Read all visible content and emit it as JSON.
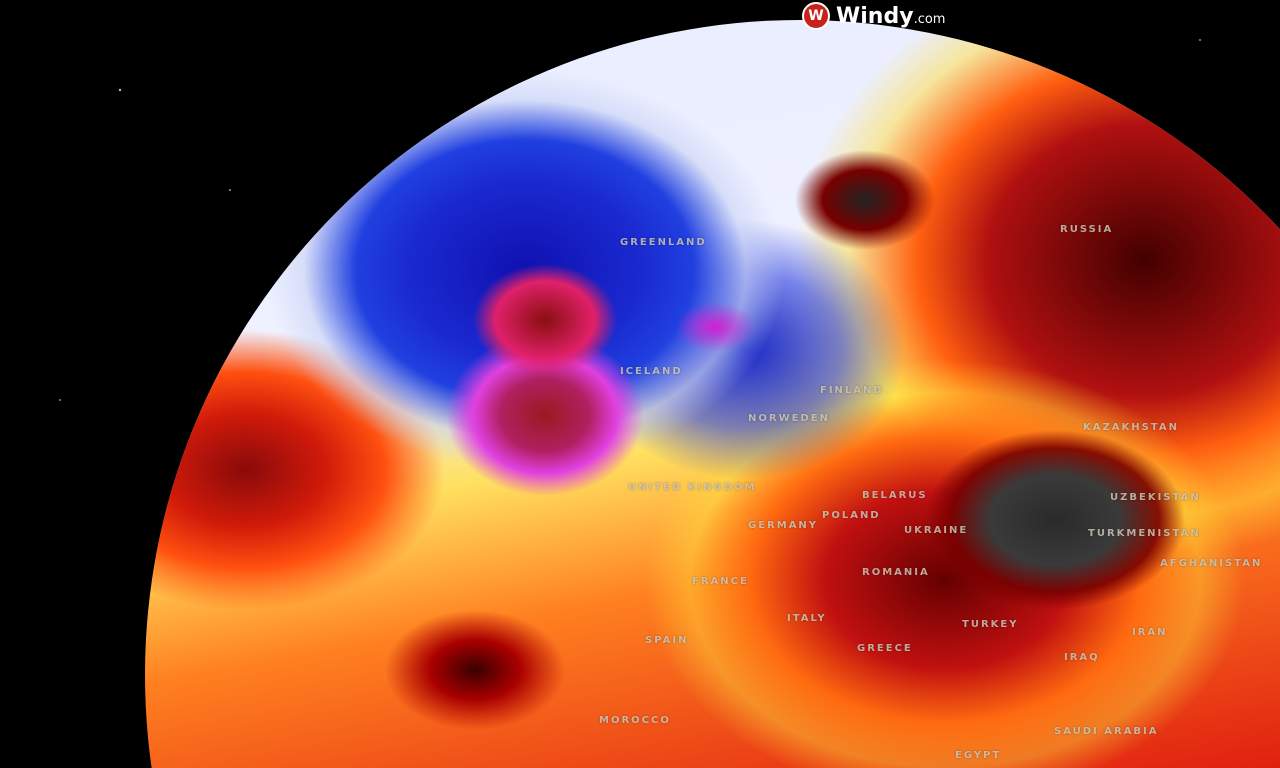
{
  "brand": {
    "name": "Windy",
    "suffix": ".com",
    "icon": "windy-logo-icon",
    "accent": "#c8221c"
  },
  "map": {
    "labels": [
      {
        "id": "greenland",
        "text": "GREENLAND"
      },
      {
        "id": "russia",
        "text": "RUSSIA"
      },
      {
        "id": "iceland",
        "text": "ICELAND"
      },
      {
        "id": "finland",
        "text": "FINLAND"
      },
      {
        "id": "norweden",
        "text": "NORWEDEN"
      },
      {
        "id": "united-kingdom",
        "text": "UNITED KINGDOM"
      },
      {
        "id": "belarus",
        "text": "BELARUS"
      },
      {
        "id": "poland",
        "text": "POLAND"
      },
      {
        "id": "germany",
        "text": "GERMANY"
      },
      {
        "id": "ukraine",
        "text": "UKRAINE"
      },
      {
        "id": "kazakhstan",
        "text": "KAZAKHSTAN"
      },
      {
        "id": "uzbekistan",
        "text": "UZBEKISTAN"
      },
      {
        "id": "turkmenistan",
        "text": "TURKMENISTAN"
      },
      {
        "id": "afghanistan",
        "text": "AFGHANISTAN"
      },
      {
        "id": "france",
        "text": "FRANCE"
      },
      {
        "id": "romania",
        "text": "ROMANIA"
      },
      {
        "id": "italy",
        "text": "ITALY"
      },
      {
        "id": "spain",
        "text": "SPAIN"
      },
      {
        "id": "greece",
        "text": "GREECE"
      },
      {
        "id": "turkey",
        "text": "TURKEY"
      },
      {
        "id": "iran",
        "text": "IRAN"
      },
      {
        "id": "iraq",
        "text": "IRAQ"
      },
      {
        "id": "morocco",
        "text": "MOROCCO"
      },
      {
        "id": "saudi-arabia",
        "text": "SAUDI ARABIA"
      },
      {
        "id": "egypt",
        "text": "EGYPT"
      }
    ]
  }
}
